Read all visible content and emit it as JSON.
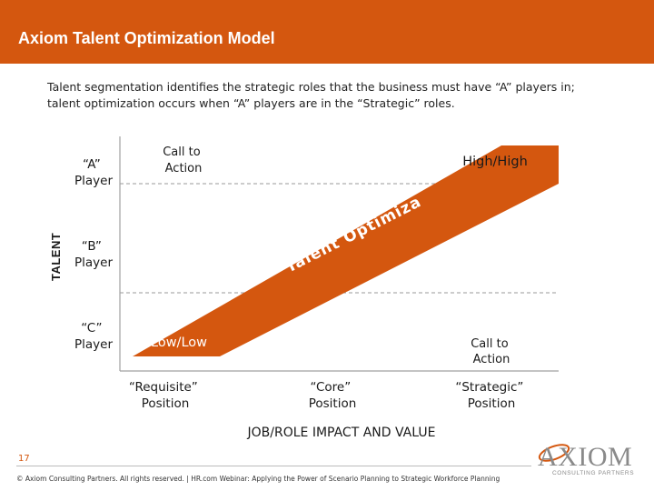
{
  "header": {
    "title": "Axiom Talent Optimization Model"
  },
  "intro": {
    "text": "Talent segmentation identifies the strategic roles that the business must have “A” players in; talent optimization occurs when “A” players are in the “Strategic” roles."
  },
  "diagram": {
    "y_axis_label": "TALENT",
    "x_axis_label": "JOB/ROLE IMPACT AND VALUE",
    "rows": [
      {
        "line1": "“A”",
        "line2": "Player"
      },
      {
        "line1": "“B”",
        "line2": "Player"
      },
      {
        "line1": "“C”",
        "line2": "Player"
      }
    ],
    "columns": [
      {
        "line1": "“Requisite”",
        "line2": "Position"
      },
      {
        "line1": "“Core”",
        "line2": "Position"
      },
      {
        "line1": "“Strategic”",
        "line2": "Position"
      }
    ],
    "corner_labels": {
      "top_left": {
        "line1": "Call to",
        "line2": "Action"
      },
      "top_right": "High/High",
      "bottom_left": "Low/Low",
      "bottom_right": {
        "line1": "Call to",
        "line2": "Action"
      }
    },
    "band_label": "Talent Optimization",
    "colors": {
      "brand": "#d4570f",
      "band": "#d4570f",
      "text": "#1a1a1a",
      "gridline": "#999999"
    }
  },
  "footer": {
    "page_number": "17",
    "copyright": "© Axiom Consulting Partners. All rights reserved. | HR.com Webinar: Applying the Power of Scenario Planning to Strategic Workforce Planning"
  },
  "logo": {
    "wordmark": "AXIOM",
    "tagline": "CONSULTING PARTNERS"
  }
}
